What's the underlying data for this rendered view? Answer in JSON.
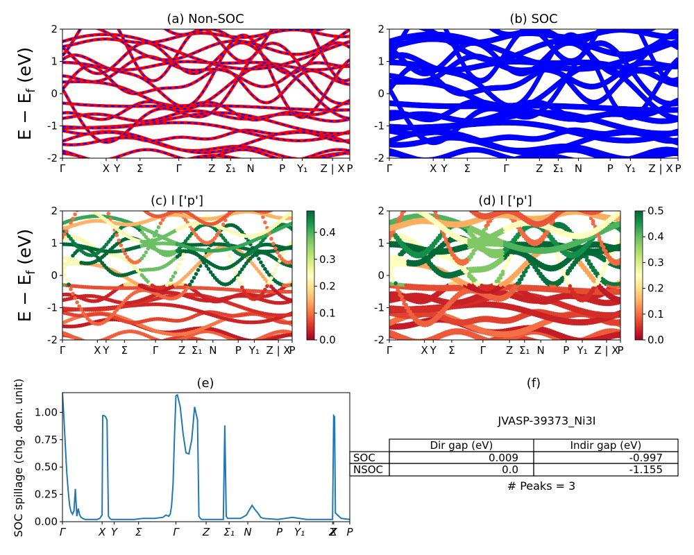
{
  "figure": {
    "material_id": "JVASP-39373_Ni3I",
    "peaks_text": "# Peaks = 3",
    "energy_ylabel_main": "E − E",
    "energy_ylabel_sub": "f",
    "energy_ylabel_unit": " (eV)"
  },
  "colors": {
    "nonsoc_band": "#ff0000",
    "nonsoc_dash": "#0000ff",
    "soc_band": "#0000ff",
    "spillage_line": "#1f77b4",
    "cmap": [
      "#a50026",
      "#d73027",
      "#f46d43",
      "#fdae61",
      "#fee08b",
      "#ffffbf",
      "#d9ef8b",
      "#a6d96a",
      "#66bd63",
      "#1a9850",
      "#006837"
    ]
  },
  "kpath": {
    "labels": [
      "Γ",
      "X",
      "Y",
      "Σ",
      "Γ",
      "Z",
      "Σ₁",
      "N",
      "P",
      "Y₁",
      "Z | X",
      "P"
    ],
    "positions": [
      0,
      0.152,
      0.19,
      0.27,
      0.405,
      0.52,
      0.585,
      0.655,
      0.765,
      0.835,
      0.94,
      1.0
    ]
  },
  "spillage_path": {
    "labels": [
      "Γ",
      "X",
      "Y",
      "Σ",
      "Γ",
      "Z",
      "Σ₁",
      "N",
      "P",
      "Y₁",
      "Z",
      "X",
      "P"
    ],
    "positions": [
      0,
      0.138,
      0.18,
      0.265,
      0.395,
      0.5,
      0.58,
      0.645,
      0.755,
      0.825,
      0.94,
      0.944,
      1.0
    ]
  },
  "chart_data": [
    {
      "panel": "a",
      "type": "line",
      "title": "(a) Non-SOC",
      "ylim": [
        -2,
        2
      ],
      "yticks": [
        -2,
        -1,
        0,
        1,
        2
      ],
      "series_style": "red solid with blue dashes"
    },
    {
      "panel": "b",
      "type": "line",
      "title": "(b) SOC",
      "ylim": [
        -2,
        2
      ],
      "yticks": [
        -2,
        -1,
        0,
        1,
        2
      ],
      "series_style": "blue thick"
    },
    {
      "panel": "c",
      "type": "scatter",
      "title": "(c)  I ['p']",
      "ylim": [
        -2,
        2
      ],
      "yticks": [
        -2,
        -1,
        0,
        1,
        2
      ],
      "colorbar": {
        "min": 0.0,
        "max": 0.48,
        "ticks": [
          "0.0",
          "0.1",
          "0.2",
          "0.3",
          "0.4"
        ]
      }
    },
    {
      "panel": "d",
      "type": "scatter",
      "title": "(d) I ['p']",
      "ylim": [
        -2,
        2
      ],
      "yticks": [
        -2,
        -1,
        0,
        1,
        2
      ],
      "colorbar": {
        "min": 0.0,
        "max": 0.5,
        "ticks": [
          "0.0",
          "0.1",
          "0.2",
          "0.3",
          "0.4",
          "0.5"
        ]
      }
    },
    {
      "panel": "e",
      "type": "line",
      "title": "(e)",
      "ylabel": "SOC spillage (chg. den. unit)",
      "ylim": [
        0,
        1.18
      ],
      "yticks": [
        "0.00",
        "0.25",
        "0.50",
        "0.75",
        "1.00"
      ],
      "x": [
        0,
        0.005,
        0.01,
        0.015,
        0.02,
        0.025,
        0.03,
        0.035,
        0.04,
        0.045,
        0.05,
        0.055,
        0.06,
        0.065,
        0.07,
        0.075,
        0.08,
        0.085,
        0.09,
        0.1,
        0.11,
        0.12,
        0.13,
        0.135,
        0.138,
        0.14,
        0.145,
        0.15,
        0.155,
        0.16,
        0.165,
        0.17,
        0.175,
        0.2,
        0.25,
        0.28,
        0.3,
        0.32,
        0.35,
        0.36,
        0.37,
        0.375,
        0.38,
        0.385,
        0.39,
        0.395,
        0.4,
        0.41,
        0.42,
        0.43,
        0.44,
        0.45,
        0.46,
        0.47,
        0.475,
        0.48,
        0.485,
        0.49,
        0.5,
        0.55,
        0.56,
        0.565,
        0.57,
        0.575,
        0.6,
        0.62,
        0.64,
        0.66,
        0.67,
        0.68,
        0.69,
        0.7,
        0.75,
        0.8,
        0.85,
        0.9,
        0.92,
        0.93,
        0.935,
        0.94,
        0.944,
        0.947,
        0.95,
        0.97,
        1.0
      ],
      "y": [
        1.18,
        0.95,
        0.7,
        0.45,
        0.28,
        0.15,
        0.09,
        0.07,
        0.1,
        0.3,
        0.05,
        0.12,
        0.06,
        0.04,
        0.03,
        0.025,
        0.02,
        0.02,
        0.02,
        0.02,
        0.02,
        0.02,
        0.03,
        0.05,
        0.06,
        0.97,
        0.97,
        0.96,
        0.93,
        0.05,
        0.03,
        0.02,
        0.02,
        0.02,
        0.02,
        0.03,
        0.03,
        0.03,
        0.04,
        0.06,
        0.05,
        0.07,
        0.15,
        0.35,
        0.8,
        1.15,
        1.16,
        1.05,
        0.8,
        0.63,
        0.62,
        0.75,
        1.05,
        0.93,
        0.05,
        0.03,
        0.02,
        0.02,
        0.02,
        0.02,
        0.02,
        0.88,
        0.05,
        0.03,
        0.03,
        0.03,
        0.06,
        0.15,
        0.11,
        0.08,
        0.04,
        0.03,
        0.02,
        0.04,
        0.02,
        0.02,
        0.02,
        0.02,
        0.02,
        0.02,
        0.97,
        0.96,
        0.08,
        0.03,
        0.02
      ]
    }
  ],
  "gap_table": {
    "title": "(f)",
    "headers": [
      "",
      "Dir gap (eV)",
      "Indir gap (eV)"
    ],
    "rows": [
      [
        "SOC",
        "0.009",
        "-0.997"
      ],
      [
        "NSOC",
        "0.0",
        "-1.155"
      ]
    ]
  }
}
